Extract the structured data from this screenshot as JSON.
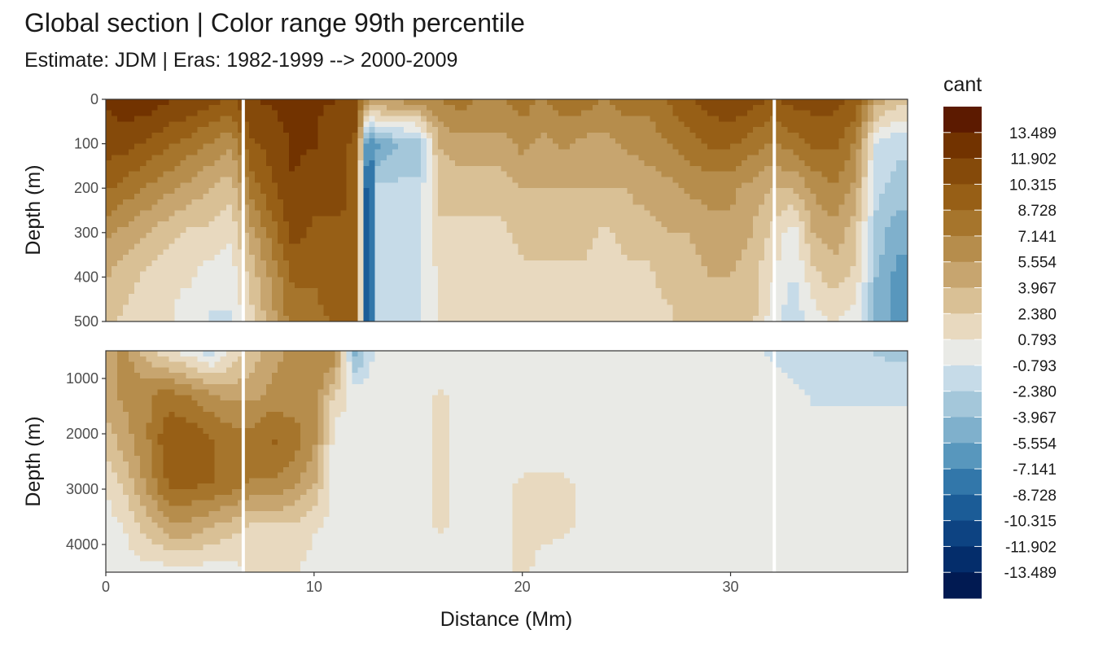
{
  "chart_data": {
    "type": "heatmap",
    "title": "Global section | Color range 99th percentile",
    "subtitle": "Estimate: JDM  | Eras: 1982-1999 --> 2000-2009",
    "xlabel": "Distance (Mm)",
    "ylabel": "Depth (m)",
    "xlim": [
      0,
      38.5
    ],
    "x_ticks": [
      0,
      10,
      20,
      30
    ],
    "x_tick_labels": [
      "0",
      "10",
      "20",
      "30"
    ],
    "grid": true,
    "legend_position": "right",
    "panels": [
      {
        "name": "upper",
        "ylim": [
          0,
          500
        ],
        "y_reversed": true,
        "y_ticks": [
          0,
          100,
          200,
          300,
          400,
          500
        ],
        "y_tick_labels": [
          "0",
          "100",
          "200",
          "300",
          "400",
          "500"
        ]
      },
      {
        "name": "lower",
        "ylim": [
          500,
          4500
        ],
        "y_reversed": true,
        "y_ticks": [
          1000,
          2000,
          3000,
          4000
        ],
        "y_tick_labels": [
          "1000",
          "2000",
          "3000",
          "4000"
        ]
      }
    ],
    "legend": {
      "title": "cant",
      "break_labels": [
        "13.489",
        "11.902",
        "10.315",
        "8.728",
        "7.141",
        "5.554",
        "3.967",
        "2.380",
        "0.793",
        "-0.793",
        "-2.380",
        "-3.967",
        "-5.554",
        "-7.141",
        "-8.728",
        "-10.315",
        "-11.902",
        "-13.489"
      ],
      "colors": [
        "#5c1a00",
        "#723300",
        "#854a0a",
        "#975f16",
        "#a6752c",
        "#b68d4c",
        "#c7a56f",
        "#d9c095",
        "#e8d9bf",
        "#e9eae6",
        "#c6dbe8",
        "#a4c7da",
        "#7fb0cc",
        "#5897bd",
        "#3277aa",
        "#1b5c97",
        "#0d4382",
        "#042d6b",
        "#011a52"
      ]
    },
    "gap_x": [
      6.6,
      32.1
    ],
    "upper_profile": [
      {
        "x": 0,
        "c": [
          12,
          11,
          9,
          6,
          4,
          3
        ]
      },
      {
        "x": 1,
        "c": [
          13,
          11,
          8,
          5,
          3,
          2
        ]
      },
      {
        "x": 2,
        "c": [
          13,
          10,
          7,
          4,
          2,
          1
        ]
      },
      {
        "x": 3,
        "c": [
          12,
          9,
          6,
          3,
          1,
          1
        ]
      },
      {
        "x": 4,
        "c": [
          12,
          8,
          5,
          2,
          1,
          0
        ]
      },
      {
        "x": 5,
        "c": [
          11,
          7,
          4,
          2,
          0,
          -1
        ]
      },
      {
        "x": 6,
        "c": [
          10,
          6,
          3,
          1,
          0,
          -1
        ]
      },
      {
        "x": 7,
        "c": [
          12,
          10,
          8,
          5,
          3,
          2
        ]
      },
      {
        "x": 8,
        "c": [
          12,
          11,
          10,
          8,
          6,
          5
        ]
      },
      {
        "x": 9,
        "c": [
          13,
          12,
          12,
          11,
          9,
          8
        ]
      },
      {
        "x": 10,
        "c": [
          12,
          12,
          11,
          10,
          9,
          8
        ]
      },
      {
        "x": 11,
        "c": [
          12,
          11,
          11,
          10,
          10,
          9
        ]
      },
      {
        "x": 12,
        "c": [
          11,
          10,
          10,
          10,
          10,
          10
        ]
      },
      {
        "x": 12.6,
        "c": [
          6,
          -8,
          -12,
          -12,
          -12,
          -12
        ]
      },
      {
        "x": 13,
        "c": [
          6,
          -6,
          -2,
          -2,
          -2,
          -2
        ]
      },
      {
        "x": 14,
        "c": [
          6,
          -4,
          -2,
          -1,
          -1,
          -1
        ]
      },
      {
        "x": 15,
        "c": [
          7,
          -4,
          -2,
          -1,
          -1,
          -1
        ]
      },
      {
        "x": 16,
        "c": [
          7,
          4,
          3,
          2,
          1,
          1
        ]
      },
      {
        "x": 17,
        "c": [
          8,
          5,
          3,
          2,
          1,
          1
        ]
      },
      {
        "x": 18,
        "c": [
          7,
          5,
          3,
          2,
          1,
          1
        ]
      },
      {
        "x": 19,
        "c": [
          7,
          5,
          3,
          2,
          1,
          1
        ]
      },
      {
        "x": 20,
        "c": [
          8,
          6,
          4,
          3,
          2,
          1
        ]
      },
      {
        "x": 21,
        "c": [
          7,
          5,
          4,
          3,
          2,
          1
        ]
      },
      {
        "x": 22,
        "c": [
          8,
          6,
          4,
          3,
          2,
          1
        ]
      },
      {
        "x": 23,
        "c": [
          8,
          5,
          4,
          3,
          2,
          1
        ]
      },
      {
        "x": 24,
        "c": [
          7,
          5,
          4,
          2,
          1,
          1
        ]
      },
      {
        "x": 25,
        "c": [
          8,
          6,
          4,
          3,
          2,
          1
        ]
      },
      {
        "x": 26,
        "c": [
          8,
          6,
          5,
          3,
          2,
          2
        ]
      },
      {
        "x": 27,
        "c": [
          9,
          7,
          5,
          4,
          3,
          2
        ]
      },
      {
        "x": 28,
        "c": [
          10,
          8,
          6,
          4,
          3,
          3
        ]
      },
      {
        "x": 29,
        "c": [
          11,
          9,
          6,
          5,
          4,
          3
        ]
      },
      {
        "x": 30,
        "c": [
          12,
          9,
          6,
          5,
          4,
          3
        ]
      },
      {
        "x": 31,
        "c": [
          11,
          8,
          5,
          4,
          3,
          3
        ]
      },
      {
        "x": 32,
        "c": [
          10,
          7,
          4,
          2,
          1,
          0
        ]
      },
      {
        "x": 33,
        "c": [
          11,
          8,
          4,
          0,
          -1,
          -2
        ]
      },
      {
        "x": 34,
        "c": [
          11,
          9,
          6,
          4,
          2,
          0
        ]
      },
      {
        "x": 35,
        "c": [
          11,
          9,
          7,
          5,
          3,
          1
        ]
      },
      {
        "x": 36,
        "c": [
          10,
          7,
          5,
          3,
          2,
          0
        ]
      },
      {
        "x": 37,
        "c": [
          5,
          -1,
          -2,
          -3,
          -4,
          -5
        ]
      },
      {
        "x": 38,
        "c": [
          3,
          -2,
          -3,
          -5,
          -6,
          -6
        ]
      }
    ],
    "lower_profile": [
      {
        "x": 0,
        "c": [
          5,
          5,
          3,
          1,
          0,
          0
        ]
      },
      {
        "x": 1,
        "c": [
          6,
          6,
          5,
          3,
          1,
          0
        ]
      },
      {
        "x": 2,
        "c": [
          3,
          7,
          7,
          6,
          3,
          0
        ]
      },
      {
        "x": 3,
        "c": [
          1,
          8,
          10,
          9,
          5,
          0
        ]
      },
      {
        "x": 4,
        "c": [
          0,
          7,
          10,
          9,
          5,
          0
        ]
      },
      {
        "x": 5,
        "c": [
          -2,
          6,
          9,
          9,
          4,
          0
        ]
      },
      {
        "x": 6,
        "c": [
          1,
          5,
          8,
          8,
          3,
          0
        ]
      },
      {
        "x": 7,
        "c": [
          3,
          5,
          8,
          7,
          2,
          1
        ]
      },
      {
        "x": 8,
        "c": [
          5,
          6,
          9,
          7,
          2,
          1
        ]
      },
      {
        "x": 9,
        "c": [
          6,
          6,
          8,
          6,
          2,
          1
        ]
      },
      {
        "x": 10,
        "c": [
          7,
          7,
          6,
          4,
          1,
          0
        ]
      },
      {
        "x": 11,
        "c": [
          7,
          2,
          0,
          0,
          0,
          0
        ]
      },
      {
        "x": 12,
        "c": [
          -5,
          0,
          0,
          0,
          0,
          0
        ]
      },
      {
        "x": 13,
        "c": [
          0,
          0,
          0,
          0,
          0,
          0
        ]
      },
      {
        "x": 15,
        "c": [
          0,
          0,
          0,
          0,
          0,
          0
        ]
      },
      {
        "x": 16,
        "c": [
          0,
          1,
          1,
          1,
          1,
          0
        ]
      },
      {
        "x": 18,
        "c": [
          0,
          0,
          0,
          0,
          0,
          0
        ]
      },
      {
        "x": 20,
        "c": [
          0,
          0,
          0,
          1,
          1,
          1
        ]
      },
      {
        "x": 22,
        "c": [
          0,
          0,
          0,
          1,
          1,
          0
        ]
      },
      {
        "x": 24,
        "c": [
          0,
          0,
          0,
          0,
          0,
          0
        ]
      },
      {
        "x": 30,
        "c": [
          0,
          0,
          0,
          0,
          0,
          0
        ]
      },
      {
        "x": 32,
        "c": [
          -1,
          0,
          0,
          0,
          0,
          0
        ]
      },
      {
        "x": 34,
        "c": [
          -2,
          -1,
          0,
          0,
          0,
          0
        ]
      },
      {
        "x": 36,
        "c": [
          -2,
          -1,
          0,
          0,
          0,
          0
        ]
      },
      {
        "x": 38,
        "c": [
          -3,
          -1,
          0,
          0,
          0,
          0
        ]
      }
    ]
  }
}
